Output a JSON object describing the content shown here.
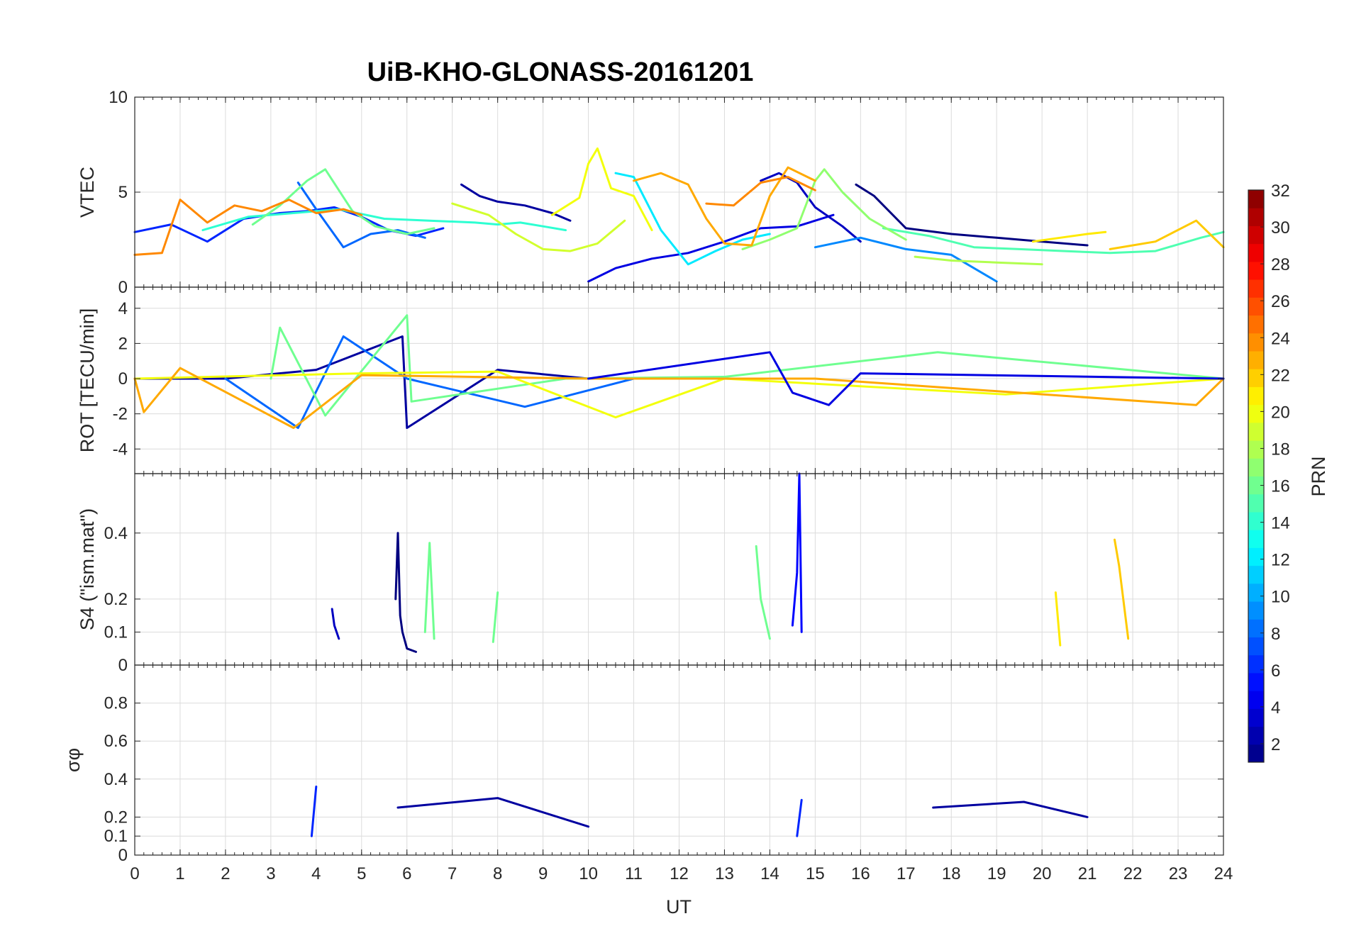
{
  "chart_data": {
    "type": "line",
    "title": "UiB-KHO-GLONASS-20161201",
    "xlabel": "UT",
    "xlim": [
      0,
      24
    ],
    "xticks": [
      "0",
      "1",
      "2",
      "3",
      "4",
      "5",
      "6",
      "7",
      "8",
      "9",
      "10",
      "11",
      "12",
      "13",
      "14",
      "15",
      "16",
      "17",
      "18",
      "19",
      "20",
      "21",
      "22",
      "23",
      "24"
    ],
    "grid": true,
    "panels": [
      {
        "id": "vtec",
        "ylabel": "VTEC",
        "ylim": [
          0,
          10
        ],
        "yticks": [
          "0",
          "5",
          "10"
        ],
        "ytick_values": [
          0,
          5,
          10
        ],
        "series": [
          {
            "prn": 2,
            "x": [
              7.2,
              7.6,
              8.0,
              8.6,
              9.2,
              9.6
            ],
            "y": [
              5.4,
              4.8,
              4.5,
              4.3,
              3.9,
              3.5
            ]
          },
          {
            "prn": 4,
            "x": [
              10.0,
              10.6,
              11.4,
              12.2,
              13.0,
              13.8,
              14.6,
              15.4
            ],
            "y": [
              0.3,
              1.0,
              1.5,
              1.8,
              2.4,
              3.1,
              3.2,
              3.8
            ]
          },
          {
            "prn": 3,
            "x": [
              13.8,
              14.2,
              14.6,
              15.0,
              15.6,
              16.0
            ],
            "y": [
              5.6,
              6.0,
              5.5,
              4.2,
              3.2,
              2.4
            ]
          },
          {
            "prn": 1,
            "x": [
              15.9,
              16.3,
              17.0,
              18.0,
              19.0,
              20.0,
              21.0
            ],
            "y": [
              5.4,
              4.8,
              3.1,
              2.8,
              2.6,
              2.4,
              2.2
            ]
          },
          {
            "prn": 6,
            "x": [
              0.0,
              0.8,
              1.6,
              2.4,
              3.2,
              3.8,
              4.4,
              5.0,
              5.6,
              6.2,
              6.8
            ],
            "y": [
              2.9,
              3.3,
              2.4,
              3.6,
              3.9,
              4.0,
              4.2,
              3.7,
              3.0,
              2.7,
              3.1
            ]
          },
          {
            "prn": 8,
            "x": [
              3.6,
              4.0,
              4.6,
              5.2,
              5.8,
              6.4
            ],
            "y": [
              5.5,
              4.1,
              2.1,
              2.8,
              3.0,
              2.6
            ]
          },
          {
            "prn": 9,
            "x": [
              15.0,
              16.0,
              17.0,
              18.0,
              19.0
            ],
            "y": [
              2.1,
              2.6,
              2.0,
              1.7,
              0.3
            ]
          },
          {
            "prn": 12,
            "x": [
              10.6,
              11.0,
              11.6,
              12.2,
              12.8,
              13.4,
              14.0
            ],
            "y": [
              6.0,
              5.8,
              3.0,
              1.2,
              1.9,
              2.5,
              2.8
            ]
          },
          {
            "prn": 14,
            "x": [
              1.5,
              2.5,
              3.5,
              4.5,
              5.5,
              6.5,
              7.5,
              8.0,
              8.5,
              9.0,
              9.5
            ],
            "y": [
              3.0,
              3.7,
              3.9,
              4.1,
              3.6,
              3.5,
              3.4,
              3.3,
              3.4,
              3.2,
              3.0
            ]
          },
          {
            "prn": 15,
            "x": [
              16.5,
              17.5,
              18.5,
              19.5,
              20.5,
              21.5,
              22.5,
              23.5,
              24.0
            ],
            "y": [
              3.1,
              2.7,
              2.1,
              2.0,
              1.9,
              1.8,
              1.9,
              2.6,
              2.9
            ]
          },
          {
            "prn": 16,
            "x": [
              2.6,
              3.2,
              3.8,
              4.2,
              4.8,
              5.3,
              6.0,
              6.6
            ],
            "y": [
              3.3,
              4.3,
              5.6,
              6.2,
              4.0,
              3.2,
              2.8,
              3.1
            ]
          },
          {
            "prn": 17,
            "x": [
              13.4,
              14.0,
              14.6,
              15.0,
              15.2,
              15.6,
              16.2,
              17.0
            ],
            "y": [
              2.0,
              2.5,
              3.1,
              5.6,
              6.2,
              5.0,
              3.6,
              2.5
            ]
          },
          {
            "prn": 18,
            "x": [
              17.2,
              18.0,
              19.0,
              20.0
            ],
            "y": [
              1.6,
              1.4,
              1.3,
              1.2
            ]
          },
          {
            "prn": 19,
            "x": [
              7.0,
              7.8,
              8.4,
              9.0,
              9.6,
              10.2,
              10.8
            ],
            "y": [
              4.4,
              3.8,
              2.8,
              2.0,
              1.9,
              2.3,
              3.5
            ]
          },
          {
            "prn": 20,
            "x": [
              9.2,
              9.8,
              10.0,
              10.2,
              10.5,
              11.0,
              11.4
            ],
            "y": [
              3.8,
              4.7,
              6.5,
              7.3,
              5.2,
              4.8,
              3.0
            ]
          },
          {
            "prn": 21,
            "x": [
              19.8,
              20.4,
              21.0,
              21.4
            ],
            "y": [
              2.4,
              2.6,
              2.8,
              2.9
            ]
          },
          {
            "prn": 22,
            "x": [
              21.5,
              22.5,
              23.4,
              24.0
            ],
            "y": [
              2.0,
              2.4,
              3.5,
              2.1
            ]
          },
          {
            "prn": 23,
            "x": [
              11.0,
              11.6,
              12.2,
              12.6,
              13.0,
              13.6,
              14.0,
              14.4,
              15.0
            ],
            "y": [
              5.6,
              6.0,
              5.4,
              3.6,
              2.3,
              2.2,
              4.8,
              6.3,
              5.6
            ]
          },
          {
            "prn": 24,
            "x": [
              0.0,
              0.6,
              1.0,
              1.6,
              2.2,
              2.8,
              3.4,
              4.0,
              4.6,
              5.0
            ],
            "y": [
              1.7,
              1.8,
              4.6,
              3.4,
              4.3,
              4.0,
              4.6,
              3.9,
              4.1,
              3.8
            ]
          },
          {
            "prn": 24,
            "x": [
              12.6,
              13.2,
              13.8,
              14.4,
              15.0
            ],
            "y": [
              4.4,
              4.3,
              5.5,
              5.8,
              5.1
            ]
          }
        ]
      },
      {
        "id": "rot",
        "ylabel": "ROT [TECU/min]",
        "ylim": [
          -5.4,
          5.2
        ],
        "yticks": [
          "-4",
          "-2",
          "0",
          "2",
          "4"
        ],
        "ytick_values": [
          -4,
          -2,
          0,
          2,
          4
        ],
        "series": [
          {
            "prn": 2,
            "x": [
              0,
              2,
              4,
              5.9,
              6,
              8,
              10
            ],
            "y": [
              0,
              0,
              0.5,
              2.4,
              -2.8,
              0.5,
              0
            ]
          },
          {
            "prn": 8,
            "x": [
              2,
              3.6,
              4.6,
              6,
              8.6,
              11
            ],
            "y": [
              0,
              -2.8,
              2.4,
              0,
              -1.6,
              0
            ]
          },
          {
            "prn": 16,
            "x": [
              3,
              3.2,
              4.2,
              6,
              6.1,
              9.5,
              13,
              17.7,
              24
            ],
            "y": [
              0,
              2.9,
              -2.1,
              3.6,
              -1.3,
              0,
              0.1,
              1.5,
              0
            ]
          },
          {
            "prn": 20,
            "x": [
              0,
              5,
              8,
              10.6,
              13,
              19.2,
              24
            ],
            "y": [
              0,
              0.3,
              0.4,
              -2.2,
              0,
              -0.9,
              0
            ]
          },
          {
            "prn": 23,
            "x": [
              0,
              0.2,
              1,
              3.5,
              5,
              10,
              15,
              23.4,
              24
            ],
            "y": [
              0,
              -1.9,
              0.6,
              -2.8,
              0.2,
              0,
              0,
              -1.5,
              0
            ]
          },
          {
            "prn": 4,
            "x": [
              10,
              14,
              14.5,
              15.3,
              16,
              24
            ],
            "y": [
              0,
              1.5,
              -0.8,
              -1.5,
              0.3,
              0
            ]
          }
        ]
      },
      {
        "id": "s4",
        "ylabel": "S4 (\"ism.mat\")",
        "ylim": [
          0,
          0.58
        ],
        "yticks": [
          "0",
          "0.1",
          "0.2",
          "0.4"
        ],
        "ytick_values": [
          0,
          0.1,
          0.2,
          0.4
        ],
        "series": [
          {
            "prn": 1,
            "x": [
              5.75,
              5.8,
              5.85,
              5.9,
              6.0,
              6.2
            ],
            "y": [
              0.2,
              0.4,
              0.15,
              0.1,
              0.05,
              0.04
            ]
          },
          {
            "prn": 3,
            "x": [
              4.35,
              4.4,
              4.5
            ],
            "y": [
              0.17,
              0.12,
              0.08
            ]
          },
          {
            "prn": 5,
            "x": [
              14.5,
              14.6,
              14.65,
              14.7
            ],
            "y": [
              0.12,
              0.28,
              0.58,
              0.1
            ]
          },
          {
            "prn": 16,
            "x": [
              6.4,
              6.5,
              6.6
            ],
            "y": [
              0.1,
              0.37,
              0.08
            ]
          },
          {
            "prn": 16,
            "x": [
              7.9,
              8.0
            ],
            "y": [
              0.07,
              0.22
            ]
          },
          {
            "prn": 16,
            "x": [
              13.7,
              13.8,
              14.0
            ],
            "y": [
              0.36,
              0.2,
              0.08
            ]
          },
          {
            "prn": 21,
            "x": [
              20.3,
              20.4
            ],
            "y": [
              0.22,
              0.06
            ]
          },
          {
            "prn": 22,
            "x": [
              21.6,
              21.7,
              21.9
            ],
            "y": [
              0.38,
              0.3,
              0.08
            ]
          }
        ]
      },
      {
        "id": "sigma_phi",
        "ylabel": "σφ",
        "ylim": [
          0,
          1
        ],
        "yticks": [
          "0",
          "0.1",
          "0.2",
          "0.4",
          "0.6",
          "0.8"
        ],
        "ytick_values": [
          0,
          0.1,
          0.2,
          0.4,
          0.6,
          0.8
        ],
        "series": [
          {
            "prn": 2,
            "x": [
              5.8,
              8.0,
              10.0
            ],
            "y": [
              0.25,
              0.3,
              0.15
            ]
          },
          {
            "prn": 2,
            "x": [
              17.6,
              19.6,
              21.0
            ],
            "y": [
              0.25,
              0.28,
              0.2
            ]
          },
          {
            "prn": 6,
            "x": [
              3.9,
              4.0
            ],
            "y": [
              0.1,
              0.36
            ]
          },
          {
            "prn": 6,
            "x": [
              14.6,
              14.7
            ],
            "y": [
              0.1,
              0.29
            ]
          }
        ]
      }
    ],
    "colorbar": {
      "label": "PRN",
      "range": [
        1,
        32
      ],
      "ticks": [
        "2",
        "4",
        "6",
        "8",
        "10",
        "12",
        "14",
        "16",
        "18",
        "20",
        "22",
        "24",
        "26",
        "28",
        "30",
        "32"
      ],
      "tick_values": [
        2,
        4,
        6,
        8,
        10,
        12,
        14,
        16,
        18,
        20,
        22,
        24,
        26,
        28,
        30,
        32
      ],
      "colormap": "jet"
    }
  }
}
